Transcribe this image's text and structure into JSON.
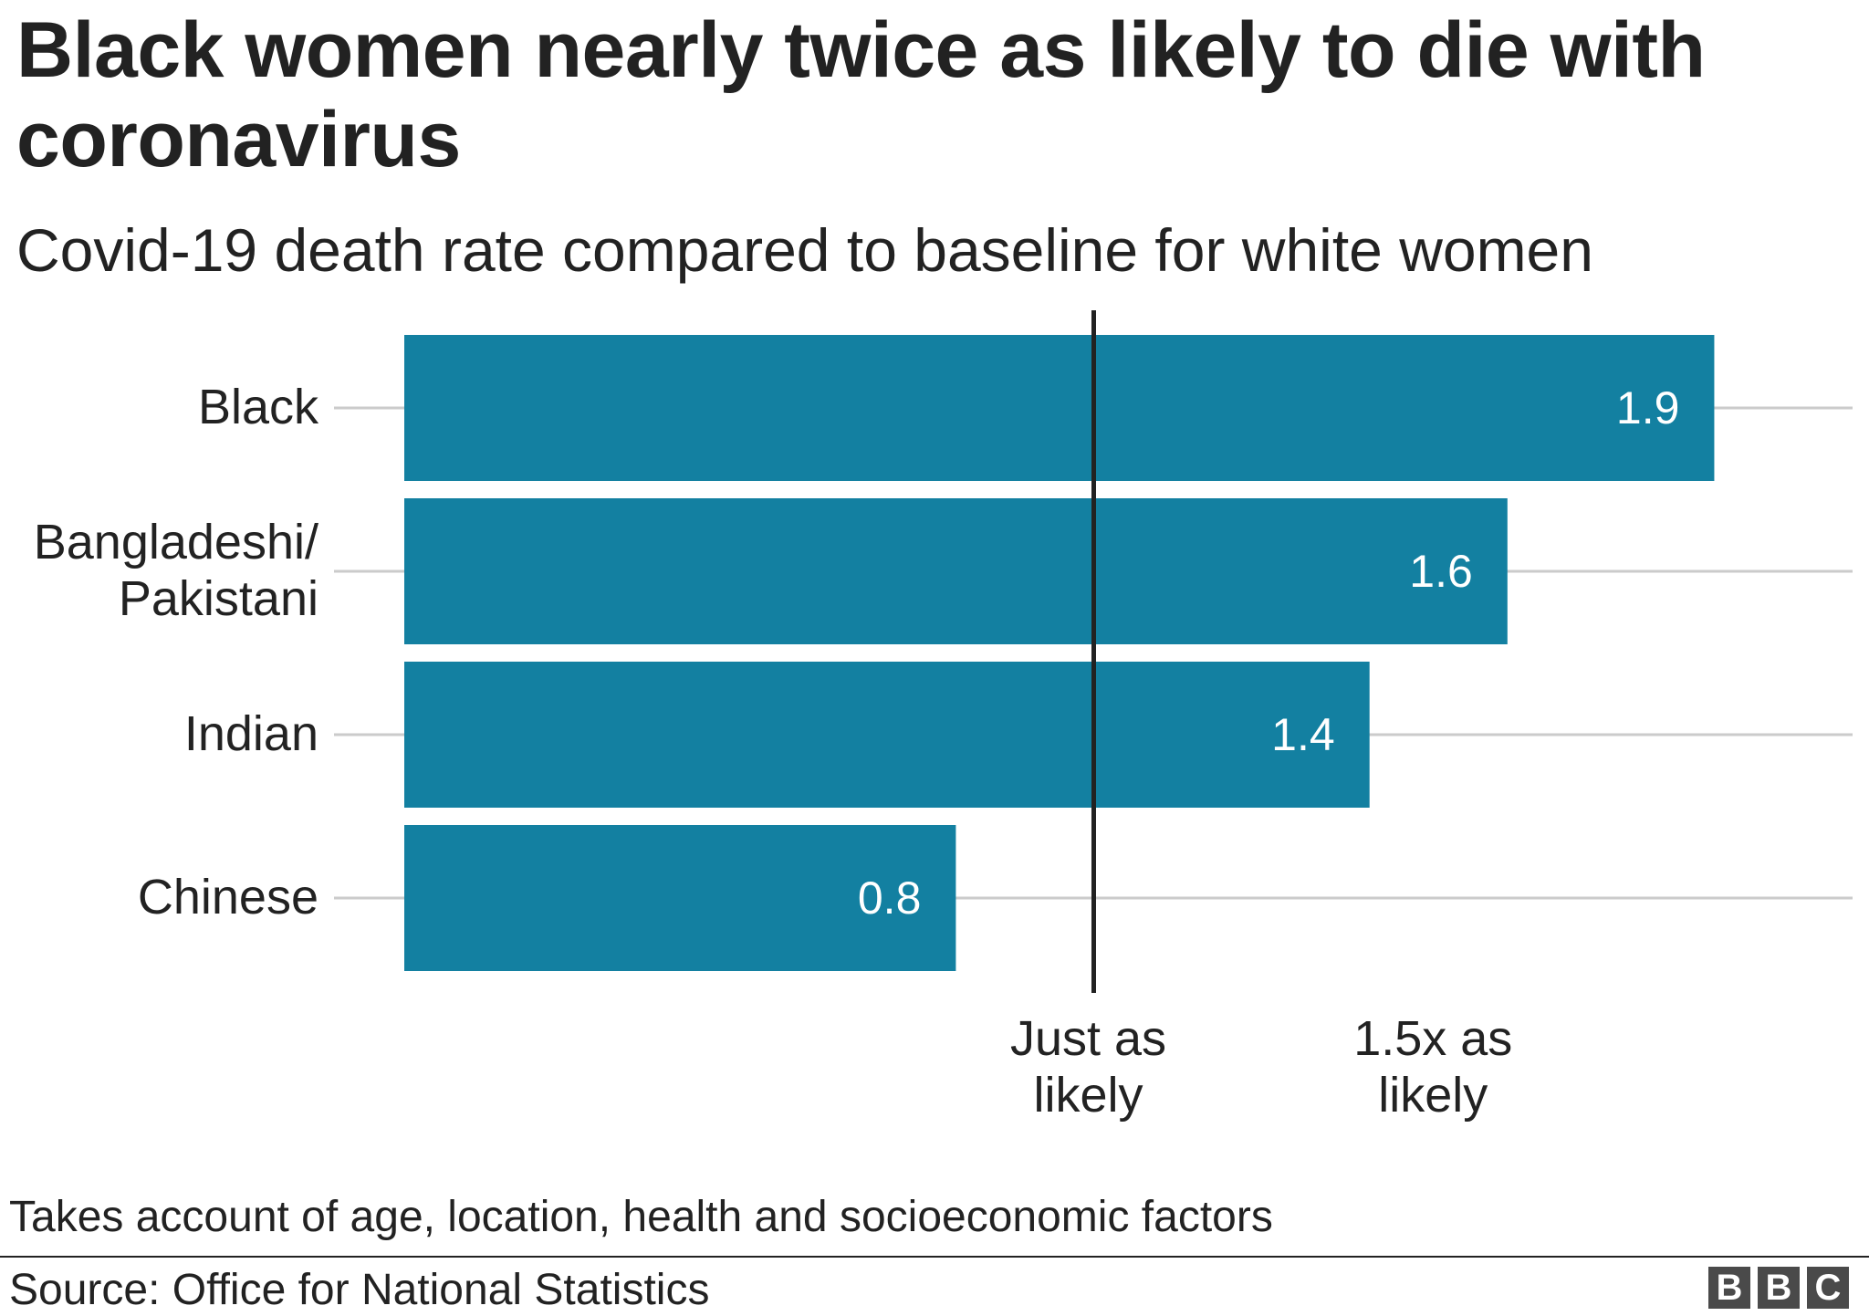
{
  "title": "Black women nearly twice as likely to die with coronavirus",
  "subtitle": "Covid-19 death rate compared to baseline for white women",
  "footnote": "Takes account of age, location, health and socioeconomic factors",
  "source": "Source: Office for National Statistics",
  "logo": {
    "letters": [
      "B",
      "B",
      "C"
    ],
    "color": "#4a4a4a"
  },
  "colors": {
    "bar": "#1380a1",
    "gridline": "#cbcbcb",
    "reference_line": "#222222",
    "bar_label": "#ffffff",
    "text": "#222222"
  },
  "chart_data": {
    "type": "bar",
    "orientation": "horizontal",
    "title": "Black women nearly twice as likely to die with coronavirus",
    "subtitle": "Covid-19 death rate compared to baseline for white women",
    "categories": [
      [
        "Black"
      ],
      [
        "Bangladeshi/",
        "Pakistani"
      ],
      [
        "Indian"
      ],
      [
        "Chinese"
      ]
    ],
    "values": [
      1.9,
      1.6,
      1.4,
      0.8
    ],
    "value_labels": [
      "1.9",
      "1.6",
      "1.4",
      "0.8"
    ],
    "xlim": [
      0,
      2.0
    ],
    "reference_line": 1.0,
    "x_ticks": [
      {
        "value": 1.0,
        "label": [
          "Just as",
          "likely"
        ]
      },
      {
        "value": 1.5,
        "label": [
          "1.5x as",
          "likely"
        ]
      }
    ],
    "xlabel": "",
    "ylabel": "",
    "grid": true,
    "legend": "none"
  }
}
